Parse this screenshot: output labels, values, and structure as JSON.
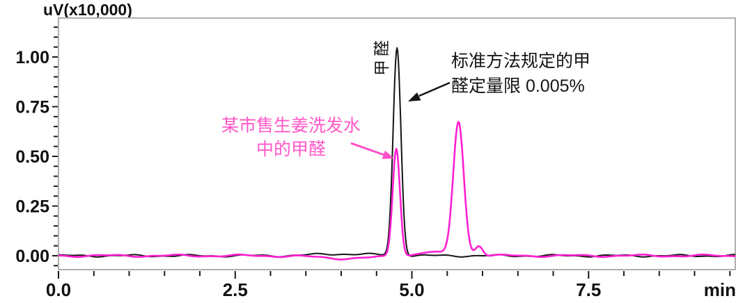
{
  "chart_data": {
    "type": "line",
    "title": "",
    "ylabel": "uV(x10,000)",
    "x_unit": "min",
    "xlim": [
      0,
      9.58
    ],
    "ylim_drawn": [
      -0.07,
      1.196
    ],
    "xticks": {
      "values": [
        0,
        2.5,
        5.0,
        7.5
      ],
      "labels": [
        "0.0",
        "2.5",
        "5.0",
        "7.5"
      ],
      "minor_step": 0.5
    },
    "yticks": {
      "values": [
        0,
        0.25,
        0.5,
        0.75,
        1.0
      ],
      "labels": [
        "0.00",
        "0.25",
        "0.50",
        "0.75",
        "1.00"
      ],
      "minor_step": 0.05
    },
    "grid": false,
    "legend": "none",
    "series": [
      {
        "name": "standard-formaldehyde",
        "color": "#141414",
        "stroke_width": 2,
        "peaks": [
          {
            "center_min": 4.79,
            "height": 1.045,
            "sigma": 0.055
          },
          {
            "center_min": 4.05,
            "height": 0.009,
            "sigma": 0.42
          }
        ],
        "noise": {
          "amps": [
            0.004,
            0.0022
          ],
          "freqs": [
            7.3,
            17.1
          ],
          "phases": [
            0.5,
            1.7
          ]
        }
      },
      {
        "name": "shampoo-sample",
        "color": "#ff1fd2",
        "stroke_width": 2.6,
        "peaks": [
          {
            "center_min": 4.78,
            "height": 0.545,
            "sigma": 0.052
          },
          {
            "center_min": 5.66,
            "height": 0.675,
            "sigma": 0.075
          },
          {
            "center_min": 5.95,
            "height": 0.052,
            "sigma": 0.055
          },
          {
            "center_min": 5.25,
            "height": 0.018,
            "sigma": 0.18
          },
          {
            "center_min": 4.1,
            "height": -0.013,
            "sigma": 0.42
          }
        ],
        "noise": {
          "amps": [
            0.0045,
            0.002
          ],
          "freqs": [
            6.7,
            15.3
          ],
          "phases": [
            3.1,
            0.4
          ]
        }
      }
    ],
    "peaks_of_interest": {
      "formaldehyde_retention_min": 4.8,
      "standard_peak_height": 1.04,
      "sample_formaldehyde_peak_height": 0.55,
      "sample_second_peak_retention_min": 5.7,
      "sample_second_peak_height": 0.67
    }
  },
  "annotations": {
    "peak_label": "甲醛",
    "standard_note_line1": "标准方法规定的甲",
    "standard_note_line2": "醛定量限 0.005%",
    "sample_note_line1": "某市售生姜洗发水",
    "sample_note_line2": "中的甲醛"
  },
  "colors": {
    "trace_standard": "#141414",
    "trace_sample": "#ff1fd2",
    "annotation_sample_text": "#ff58c8",
    "arrow_sample": "#ff4ec6",
    "arrow_standard": "#141414",
    "axis_frame": "#aeaeae",
    "tick": "#1a1a1a",
    "label": "#111111"
  }
}
